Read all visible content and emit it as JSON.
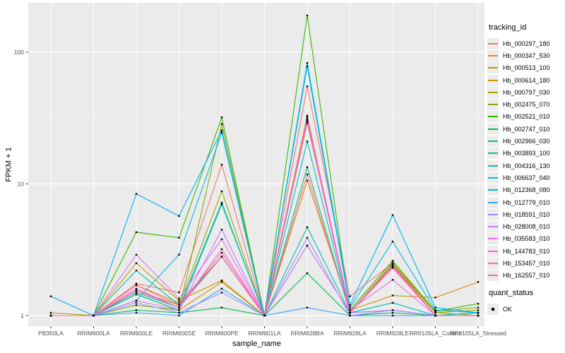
{
  "chart_data": {
    "type": "line",
    "title": "",
    "xlabel": "sample_name",
    "ylabel": "FPKM + 1",
    "legend_title": "tracking_id",
    "quant_legend": {
      "title": "quant_status",
      "items": [
        "OK"
      ]
    },
    "y_scale": "log10",
    "y_major_ticks": [
      1,
      10,
      100
    ],
    "y_tick_labels": [
      "1",
      "10",
      "100"
    ],
    "y_minor_gridlines": [
      3.162,
      31.62
    ],
    "ylim": [
      1,
      237
    ],
    "grid": "on",
    "legend_position": "right",
    "panel_bg": "#EBEBEB",
    "grid_color": "#FFFFFF",
    "tick_color": "#333333",
    "tick_label_color": "#4D4D4D",
    "point_color": "#000000",
    "categories": [
      "PB350LA",
      "RRIM600LA",
      "RRIM600LE",
      "RRIM600SE",
      "RRIM600PE",
      "RRIM901LA",
      "RRIM928BA",
      "RRIM928LA",
      "RRIM928LE",
      "RRII105LA_Control",
      "RRII105LA_Stressed"
    ],
    "series": [
      {
        "name": "Hb_000297_180",
        "color": "#F8766D",
        "values": [
          1.0,
          1.0,
          1.75,
          1.5,
          14,
          1.0,
          55,
          1.4,
          2.5,
          1.0,
          1.0
        ]
      },
      {
        "name": "Hb_000347_530",
        "color": "#EA8331",
        "values": [
          1.0,
          1.0,
          1.7,
          1.25,
          2.8,
          1.0,
          30,
          1.05,
          2.45,
          1.0,
          1.0
        ]
      },
      {
        "name": "Hb_000513_100",
        "color": "#D89000",
        "values": [
          1.0,
          1.0,
          1.45,
          1.1,
          1.8,
          1.0,
          10.6,
          1.1,
          1.42,
          1.37,
          1.8
        ]
      },
      {
        "name": "Hb_000614_180",
        "color": "#C09B00",
        "values": [
          1.0,
          1.0,
          2.5,
          1.3,
          1.85,
          1.0,
          3.4,
          1.05,
          2.5,
          1.05,
          1.0
        ]
      },
      {
        "name": "Hb_000797_030",
        "color": "#A3A500",
        "values": [
          1.05,
          1.0,
          1.55,
          1.2,
          8.8,
          1.0,
          29,
          1.1,
          2.6,
          1.05,
          1.1
        ]
      },
      {
        "name": "Hb_002475_070",
        "color": "#7CAE00",
        "values": [
          1.0,
          1.0,
          1.2,
          1.1,
          28.5,
          1.0,
          33,
          1.05,
          2.45,
          1.08,
          1.15
        ]
      },
      {
        "name": "Hb_002521_010",
        "color": "#39B600",
        "values": [
          1.0,
          1.0,
          4.3,
          3.9,
          32,
          1.0,
          190,
          1.1,
          2.6,
          1.08,
          1.23
        ]
      },
      {
        "name": "Hb_002747_010",
        "color": "#00BB4E",
        "values": [
          1.0,
          1.0,
          1.1,
          1.05,
          1.15,
          1.0,
          2.1,
          1.0,
          1.05,
          1.0,
          1.0
        ]
      },
      {
        "name": "Hb_002966_030",
        "color": "#00BF7D",
        "values": [
          1.0,
          1.0,
          1.45,
          1.1,
          7.0,
          1.0,
          13.4,
          1.05,
          1.1,
          1.0,
          1.05
        ]
      },
      {
        "name": "Hb_003893_100",
        "color": "#00C1A3",
        "values": [
          1.0,
          1.0,
          2.2,
          1.2,
          2.8,
          1.0,
          4.7,
          1.05,
          1.25,
          1.0,
          1.05
        ]
      },
      {
        "name": "Hb_004316_130",
        "color": "#00BFC4",
        "values": [
          1.0,
          1.0,
          1.5,
          1.15,
          7.2,
          1.0,
          21,
          1.05,
          1.25,
          1.0,
          1.05
        ]
      },
      {
        "name": "Hb_006637_040",
        "color": "#00BAE0",
        "values": [
          1.0,
          1.0,
          1.3,
          2.9,
          24.5,
          1.0,
          78,
          1.15,
          3.65,
          1.1,
          1.05
        ]
      },
      {
        "name": "Hb_012368_080",
        "color": "#00B0F6",
        "values": [
          1.4,
          1.0,
          8.4,
          5.7,
          25.5,
          1.0,
          83,
          1.2,
          5.8,
          1.15,
          1.05
        ]
      },
      {
        "name": "Hb_012779_010",
        "color": "#35A2FF",
        "values": [
          1.0,
          1.0,
          1.05,
          1.0,
          1.6,
          1.0,
          1.15,
          1.0,
          1.0,
          1.0,
          1.0
        ]
      },
      {
        "name": "Hb_018591_010",
        "color": "#9590FF",
        "values": [
          1.0,
          1.0,
          1.25,
          1.05,
          1.5,
          1.0,
          3.9,
          1.0,
          1.1,
          1.0,
          1.0
        ]
      },
      {
        "name": "Hb_028008_010",
        "color": "#C77CFF",
        "values": [
          1.0,
          1.0,
          1.3,
          1.1,
          4.5,
          1.0,
          3.4,
          1.05,
          1.1,
          1.0,
          1.0
        ]
      },
      {
        "name": "Hb_035583_010",
        "color": "#E76BF3",
        "values": [
          1.0,
          1.0,
          2.9,
          1.35,
          3.8,
          1.0,
          32,
          1.1,
          1.87,
          1.0,
          1.0
        ]
      },
      {
        "name": "Hb_144783_010",
        "color": "#FA62DB",
        "values": [
          1.0,
          1.0,
          1.6,
          1.15,
          3.2,
          1.0,
          31,
          1.05,
          2.4,
          1.0,
          1.0
        ]
      },
      {
        "name": "Hb_153457_010",
        "color": "#FF62BC",
        "values": [
          1.0,
          1.0,
          1.55,
          1.15,
          2.8,
          1.0,
          30,
          1.05,
          2.35,
          1.0,
          1.0
        ]
      },
      {
        "name": "Hb_162557_010",
        "color": "#FF6A98",
        "values": [
          1.0,
          1.0,
          1.7,
          1.2,
          3.0,
          1.0,
          11.8,
          1.05,
          2.3,
          1.0,
          1.0
        ]
      }
    ]
  }
}
